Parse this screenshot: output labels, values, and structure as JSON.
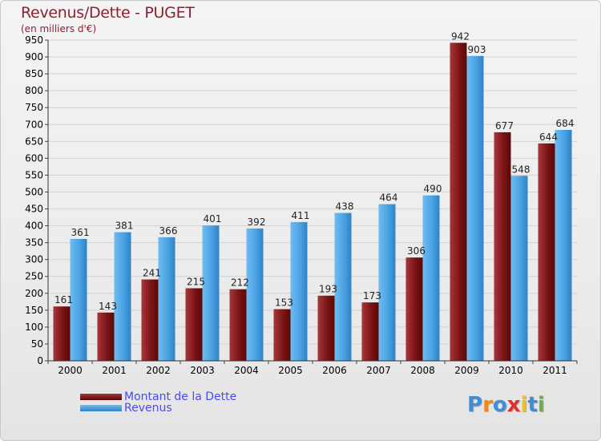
{
  "chart_data": {
    "type": "bar",
    "title": "Revenus/Dette - PUGET",
    "subtitle": "(en milliers d'€)",
    "categories": [
      "2000",
      "2001",
      "2002",
      "2003",
      "2004",
      "2005",
      "2006",
      "2007",
      "2008",
      "2009",
      "2010",
      "2011"
    ],
    "series": [
      {
        "name": "Montant de la Dette",
        "color": "#7b1416",
        "values": [
          161,
          143,
          241,
          215,
          212,
          153,
          193,
          173,
          306,
          942,
          677,
          644
        ]
      },
      {
        "name": "Revenus",
        "color": "#4aa3e4",
        "values": [
          361,
          381,
          366,
          401,
          392,
          411,
          438,
          464,
          490,
          903,
          548,
          684
        ]
      }
    ],
    "ylim": [
      0,
      950
    ],
    "yticks": [
      0,
      50,
      100,
      150,
      200,
      250,
      300,
      350,
      400,
      450,
      500,
      550,
      600,
      650,
      700,
      750,
      800,
      850,
      900,
      950
    ],
    "grid": true,
    "legend_position": "bottom-left"
  },
  "logo": {
    "letters": [
      "P",
      "r",
      "o",
      "x",
      "i",
      "t",
      "i"
    ],
    "colors": [
      "#3f8fd8",
      "#f08a1a",
      "#3f8fd8",
      "#e23030",
      "#f0c020",
      "#3f8fd8",
      "#6ab04c"
    ]
  }
}
